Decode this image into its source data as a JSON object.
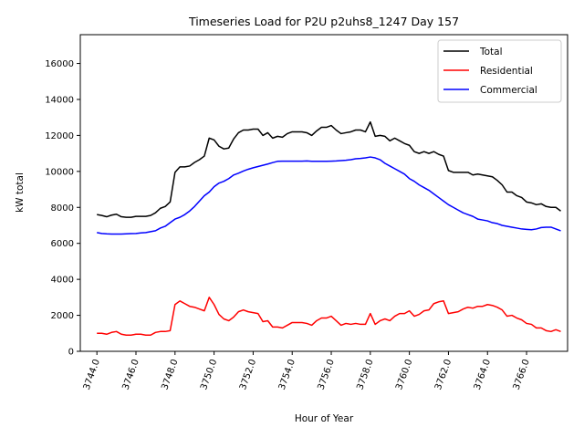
{
  "chart_data": {
    "type": "line",
    "title": "Timeseries Load for P2U p2uhs8_1247  Day 157",
    "xlabel": "Hour of Year",
    "ylabel": "kW total",
    "xlim": [
      3743.15,
      3768.1
    ],
    "ylim": [
      0,
      17600
    ],
    "x_ticks": [
      3744.0,
      3746.0,
      3748.0,
      3750.0,
      3752.0,
      3754.0,
      3756.0,
      3758.0,
      3760.0,
      3762.0,
      3764.0,
      3766.0
    ],
    "x_tick_labels": [
      "3744.0",
      "3746.0",
      "3748.0",
      "3750.0",
      "3752.0",
      "3754.0",
      "3756.0",
      "3758.0",
      "3760.0",
      "3762.0",
      "3764.0",
      "3766.0"
    ],
    "y_ticks": [
      0,
      2000,
      4000,
      6000,
      8000,
      10000,
      12000,
      14000,
      16000
    ],
    "y_tick_labels": [
      "0",
      "2000",
      "4000",
      "6000",
      "8000",
      "10000",
      "12000",
      "14000",
      "16000"
    ],
    "grid": false,
    "legend_position": "top-right",
    "x_start": 3744.0,
    "x_step": 0.25,
    "series": [
      {
        "name": "Total",
        "color": "#000000",
        "values": [
          7600,
          7550,
          7480,
          7570,
          7620,
          7480,
          7450,
          7450,
          7500,
          7500,
          7500,
          7550,
          7700,
          7950,
          8050,
          8300,
          9950,
          10250,
          10250,
          10300,
          10500,
          10650,
          10850,
          11850,
          11750,
          11400,
          11250,
          11300,
          11800,
          12150,
          12300,
          12300,
          12350,
          12350,
          12000,
          12150,
          11850,
          11950,
          11900,
          12100,
          12200,
          12200,
          12200,
          12150,
          12000,
          12250,
          12450,
          12450,
          12550,
          12300,
          12100,
          12150,
          12200,
          12300,
          12300,
          12200,
          12750,
          11950,
          12000,
          11950,
          11700,
          11850,
          11700,
          11550,
          11450,
          11100,
          11000,
          11100,
          11000,
          11100,
          10950,
          10850,
          10050,
          9950,
          9950,
          9950,
          9950,
          9800,
          9850,
          9800,
          9750,
          9700,
          9500,
          9250,
          8850,
          8850,
          8650,
          8550,
          8300,
          8250,
          8150,
          8200,
          8050,
          8000,
          8000,
          7800
        ]
      },
      {
        "name": "Residential",
        "color": "#ff0000",
        "values": [
          1000,
          1000,
          950,
          1050,
          1100,
          950,
          900,
          900,
          950,
          950,
          900,
          900,
          1050,
          1100,
          1100,
          1150,
          2600,
          2800,
          2650,
          2500,
          2450,
          2350,
          2250,
          3000,
          2600,
          2050,
          1800,
          1700,
          1900,
          2200,
          2300,
          2200,
          2150,
          2100,
          1650,
          1700,
          1350,
          1350,
          1300,
          1450,
          1600,
          1600,
          1600,
          1550,
          1450,
          1700,
          1850,
          1850,
          1950,
          1700,
          1450,
          1550,
          1500,
          1550,
          1500,
          1500,
          2100,
          1500,
          1700,
          1800,
          1700,
          1950,
          2100,
          2100,
          2250,
          1950,
          2050,
          2250,
          2300,
          2650,
          2750,
          2800,
          2100,
          2150,
          2200,
          2350,
          2450,
          2400,
          2500,
          2500,
          2600,
          2550,
          2450,
          2300,
          1950,
          2000,
          1850,
          1750,
          1550,
          1500,
          1300,
          1300,
          1150,
          1100,
          1200,
          1100
        ]
      },
      {
        "name": "Commercial",
        "color": "#0000ff",
        "values": [
          6600,
          6550,
          6530,
          6520,
          6520,
          6520,
          6530,
          6540,
          6550,
          6580,
          6600,
          6650,
          6700,
          6850,
          6950,
          7150,
          7350,
          7450,
          7600,
          7800,
          8050,
          8350,
          8650,
          8850,
          9150,
          9350,
          9450,
          9600,
          9800,
          9900,
          10020,
          10120,
          10200,
          10270,
          10340,
          10410,
          10490,
          10560,
          10570,
          10570,
          10570,
          10570,
          10570,
          10580,
          10560,
          10560,
          10560,
          10560,
          10570,
          10580,
          10600,
          10620,
          10650,
          10700,
          10720,
          10750,
          10800,
          10750,
          10650,
          10450,
          10300,
          10150,
          10000,
          9850,
          9600,
          9450,
          9250,
          9100,
          8950,
          8750,
          8550,
          8350,
          8150,
          8000,
          7850,
          7700,
          7600,
          7500,
          7350,
          7300,
          7250,
          7150,
          7100,
          7000,
          6950,
          6900,
          6850,
          6800,
          6780,
          6760,
          6800,
          6880,
          6900,
          6900,
          6800,
          6700
        ]
      }
    ]
  }
}
